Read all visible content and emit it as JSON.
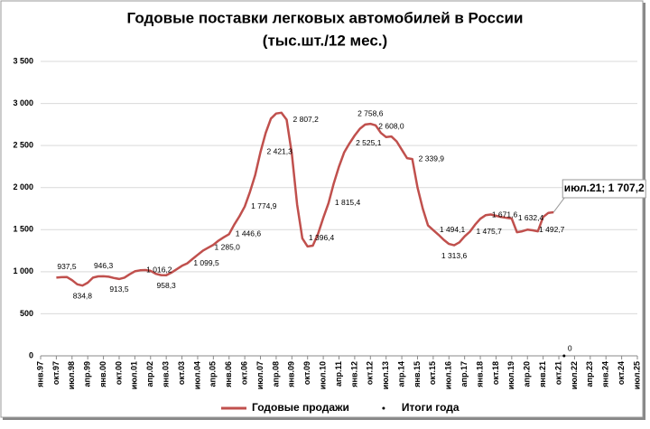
{
  "chart_data": {
    "type": "line",
    "title": "Годовые поставки легковых автомобилей в России",
    "subtitle": "(тыс.шт./12 мес.)",
    "categories": [
      "янв.97",
      null,
      null,
      "окт.97",
      null,
      null,
      "июл.98",
      null,
      null,
      "апр.99",
      null,
      null,
      "янв.00",
      null,
      null,
      "окт.00",
      null,
      null,
      "июл.01",
      null,
      null,
      "апр.02",
      null,
      null,
      "янв.03",
      null,
      null,
      "окт.03",
      null,
      null,
      "июл.04",
      null,
      null,
      "апр.05",
      null,
      null,
      "янв.06",
      null,
      null,
      "окт.06",
      null,
      null,
      "июл.07",
      null,
      null,
      "апр.08",
      null,
      null,
      "янв.09",
      null,
      null,
      "окт.09",
      null,
      null,
      "июл.10",
      null,
      null,
      "апр.11",
      null,
      null,
      "янв.12",
      null,
      null,
      "окт.12",
      null,
      null,
      "июл.13",
      null,
      null,
      "апр.14",
      null,
      null,
      "янв.15",
      null,
      null,
      "окт.15",
      null,
      null,
      "июл.16",
      null,
      null,
      "апр.17",
      null,
      null,
      "янв.18",
      null,
      null,
      "окт.18",
      null,
      null,
      "июл.19",
      null,
      null,
      "апр.20",
      null,
      null,
      "янв.21",
      null,
      null,
      "окт.21",
      null,
      null,
      "июл.22",
      null,
      null,
      "апр.23",
      null,
      null,
      "янв.24",
      null,
      null,
      "окт.24",
      null,
      null,
      "июл.25"
    ],
    "series": [
      {
        "name": "Годовые продажи",
        "color": "#c0504d",
        "style": "line",
        "values": [
          null,
          null,
          null,
          930,
          935,
          937.5,
          900,
          850,
          834.8,
          870,
          930,
          945,
          946.3,
          940,
          925,
          913.5,
          930,
          970,
          1005,
          1016.2,
          1020,
          1010,
          975,
          960,
          958.3,
          990,
          1030,
          1070,
          1099.5,
          1150,
          1200,
          1250,
          1285,
          1320,
          1370,
          1410,
          1446.6,
          1560,
          1660,
          1774.9,
          1950,
          2150,
          2421.3,
          2650,
          2820,
          2880,
          2890,
          2807.2,
          2400,
          1800,
          1396.4,
          1300,
          1310,
          1450,
          1640,
          1815.4,
          2050,
          2250,
          2420,
          2525.1,
          2620,
          2700,
          2750,
          2758.6,
          2740,
          2650,
          2600,
          2608,
          2550,
          2450,
          2350,
          2339.9,
          2000,
          1750,
          1550,
          1494.1,
          1440,
          1380,
          1330,
          1313.6,
          1350,
          1420,
          1475.7,
          1560,
          1630,
          1671.6,
          1680,
          1665,
          1650,
          1640,
          1632.4,
          1470,
          1480,
          1500,
          1492.7,
          1480,
          1650,
          1700,
          1707.2,
          null,
          null,
          null,
          null,
          null,
          null,
          null,
          null,
          null,
          null,
          null,
          null,
          null,
          null,
          null,
          null
        ],
        "value_labels": [
          null,
          null,
          null,
          null,
          null,
          "937,5",
          null,
          null,
          "834,8",
          null,
          null,
          null,
          "946,3",
          null,
          null,
          "913,5",
          null,
          null,
          null,
          "1 016,2",
          null,
          null,
          null,
          null,
          "958,3",
          null,
          null,
          null,
          "1 099,5",
          null,
          null,
          null,
          "1 285,0",
          null,
          null,
          null,
          "1 446,6",
          null,
          null,
          "1 774,9",
          null,
          null,
          "2 421,3",
          null,
          null,
          null,
          null,
          "2 807,2",
          null,
          null,
          "1 396,4",
          null,
          null,
          null,
          null,
          "1 815,4",
          null,
          null,
          null,
          "2 525,1",
          null,
          null,
          null,
          "2 758,6",
          null,
          null,
          null,
          "2 608,0",
          null,
          null,
          null,
          "2 339,9",
          null,
          null,
          null,
          "1 494,1",
          null,
          null,
          null,
          "1 313,6",
          null,
          null,
          "1 475,7",
          null,
          null,
          "1 671,6",
          null,
          null,
          null,
          null,
          "1 632,4",
          null,
          null,
          null,
          "1 492,7",
          null,
          null,
          null,
          "июл.21; 1 707,2",
          null,
          null,
          null,
          null,
          null,
          null,
          null,
          null,
          null,
          null,
          null,
          null,
          null,
          null,
          null,
          null
        ]
      },
      {
        "name": "Итоги года",
        "color": "#000000",
        "style": "dot",
        "values": [
          null,
          null,
          null,
          null,
          null,
          null,
          null,
          null,
          null,
          null,
          null,
          null,
          null,
          null,
          null,
          null,
          null,
          null,
          null,
          null,
          null,
          null,
          null,
          null,
          null,
          null,
          null,
          null,
          null,
          null,
          null,
          null,
          null,
          null,
          null,
          null,
          null,
          null,
          null,
          null,
          null,
          null,
          null,
          null,
          null,
          null,
          null,
          null,
          null,
          null,
          null,
          null,
          null,
          null,
          null,
          null,
          null,
          null,
          null,
          null,
          null,
          null,
          null,
          null,
          null,
          null,
          null,
          null,
          null,
          null,
          null,
          null,
          null,
          null,
          null,
          null,
          null,
          null,
          null,
          null,
          null,
          null,
          null,
          null,
          null,
          null,
          null,
          null,
          null,
          null,
          null,
          null,
          null,
          null,
          null,
          null,
          null,
          null,
          null,
          null,
          0,
          null,
          null,
          null,
          null,
          null,
          null,
          null,
          null,
          null,
          null,
          null,
          null,
          null,
          null
        ],
        "value_labels": [
          null,
          null,
          null,
          null,
          null,
          null,
          null,
          null,
          null,
          null,
          null,
          null,
          null,
          null,
          null,
          null,
          null,
          null,
          null,
          null,
          null,
          null,
          null,
          null,
          null,
          null,
          null,
          null,
          null,
          null,
          null,
          null,
          null,
          null,
          null,
          null,
          null,
          null,
          null,
          null,
          null,
          null,
          null,
          null,
          null,
          null,
          null,
          null,
          null,
          null,
          null,
          null,
          null,
          null,
          null,
          null,
          null,
          null,
          null,
          null,
          null,
          null,
          null,
          null,
          null,
          null,
          null,
          null,
          null,
          null,
          null,
          null,
          null,
          null,
          null,
          null,
          null,
          null,
          null,
          null,
          null,
          null,
          null,
          null,
          null,
          null,
          null,
          null,
          null,
          null,
          null,
          null,
          null,
          null,
          null,
          null,
          null,
          null,
          null,
          null,
          "0",
          null,
          null,
          null,
          null,
          null,
          null,
          null,
          null,
          null,
          null,
          null,
          null,
          null,
          null
        ]
      }
    ],
    "ylim": [
      0,
      3500
    ],
    "yticks": [
      0,
      500,
      {
        "value": 1000,
        "label": "1 000"
      },
      {
        "value": 1500,
        "label": "1 500"
      },
      {
        "value": 2000,
        "label": "2 000"
      },
      {
        "value": 2500,
        "label": "2 500"
      },
      {
        "value": 3000,
        "label": "3 000"
      },
      {
        "value": 3500,
        "label": "3 500"
      }
    ],
    "grid": true,
    "legend": "bottom"
  }
}
